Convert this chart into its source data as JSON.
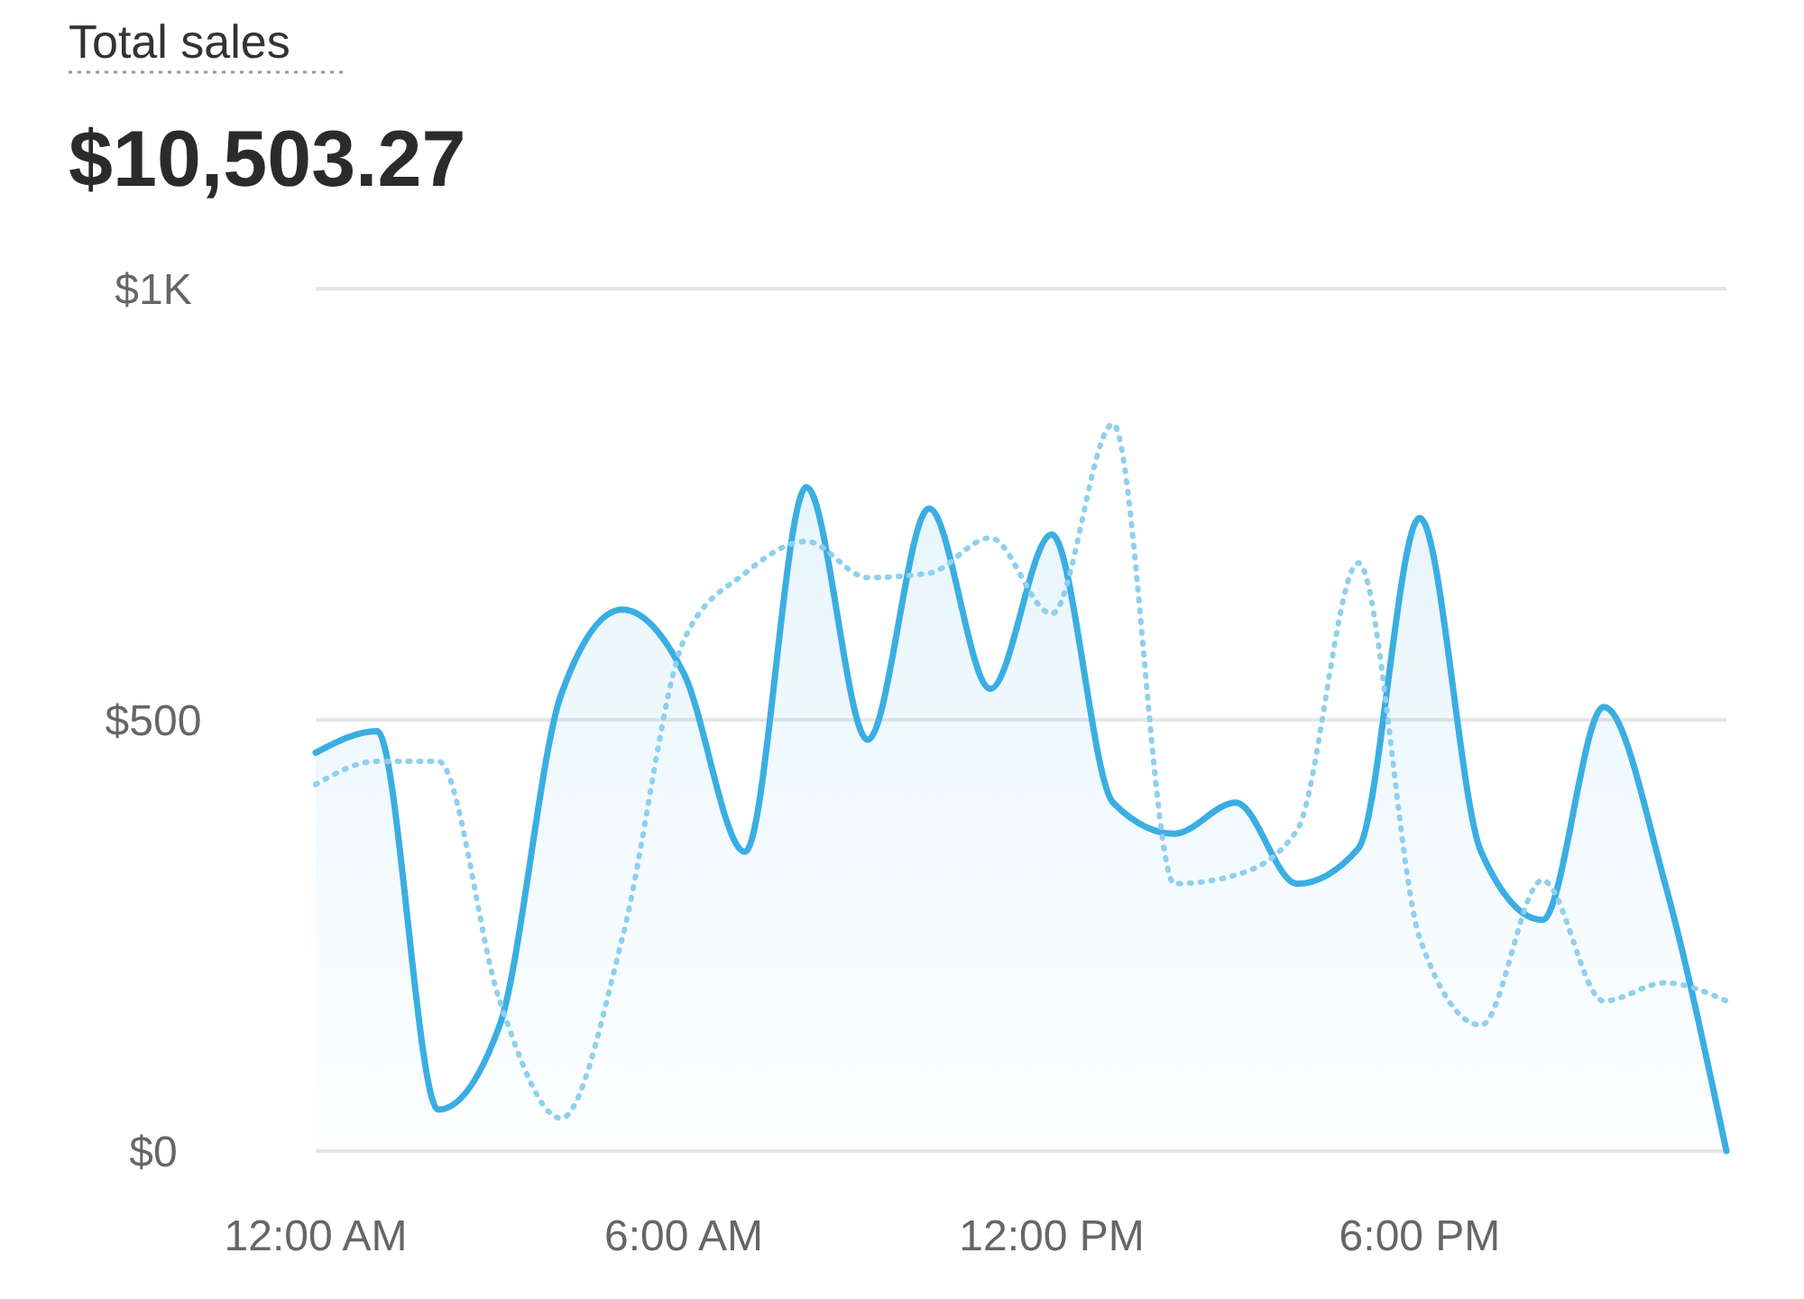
{
  "chart_data": {
    "type": "line",
    "title": "Total sales",
    "subtitle": "$10,503.27",
    "x": [
      0,
      1,
      2,
      3,
      4,
      5,
      6,
      7,
      8,
      9,
      10,
      11,
      12,
      13,
      14,
      15,
      16,
      17,
      18,
      19,
      20,
      21,
      22,
      23
    ],
    "xlim": [
      0,
      23
    ],
    "xticks": [
      {
        "value": 0,
        "label": "12:00 AM"
      },
      {
        "value": 6,
        "label": "6:00 AM"
      },
      {
        "value": 12,
        "label": "12:00 PM"
      },
      {
        "value": 18,
        "label": "6:00 PM"
      }
    ],
    "ylim": [
      0,
      1000
    ],
    "yticks": [
      {
        "value": 0,
        "label": "$0"
      },
      {
        "value": 500,
        "label": "$500"
      },
      {
        "value": 1000,
        "label": "$1K"
      }
    ],
    "grid": "y",
    "series": [
      {
        "type": "area",
        "color": "#3aaee3",
        "line_style": "solid",
        "values": [
          462,
          487,
          48,
          146,
          529,
          628,
          554,
          347,
          770,
          477,
          745,
          536,
          715,
          404,
          368,
          404,
          310,
          351,
          734,
          347,
          268,
          515,
          310,
          0
        ]
      },
      {
        "color": "#8fd0ee",
        "line_style": "dotted",
        "values": [
          425,
          452,
          452,
          174,
          38,
          247,
          592,
          670,
          707,
          665,
          670,
          711,
          623,
          843,
          310,
          320,
          372,
          682,
          247,
          146,
          314,
          174,
          195,
          174
        ]
      }
    ]
  }
}
